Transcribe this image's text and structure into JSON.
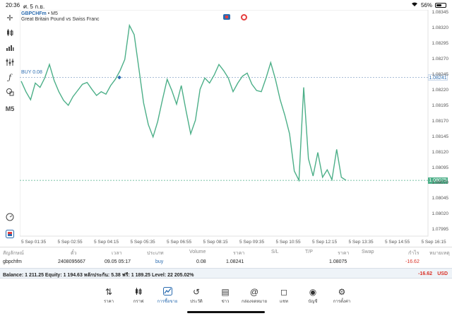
{
  "status": {
    "time": "20:36",
    "date": "ศ. 5 ก.ย.",
    "wifi_icon": "wifi-icon",
    "battery": "56%",
    "battery_level": 0.56
  },
  "chart": {
    "symbol": "GBPCHFm",
    "timeframe_suffix": "• M5",
    "description": "Great Britain Pound vs Swiss Franc",
    "buy_label": "BUY 0.08",
    "buy_price_tag": "1.08241",
    "bid_price_tag": "1.08075",
    "colors": {
      "line": "#4caf88",
      "buy": "#2b6cb0",
      "bid": "#4caf88"
    },
    "ytick_labels": [
      "1.08345",
      "1.08320",
      "1.08295",
      "1.08270",
      "1.08245",
      "1.08220",
      "1.08195",
      "1.08170",
      "1.08145",
      "1.08120",
      "1.08095",
      "1.08070",
      "1.08045",
      "1.08020",
      "1.07995"
    ],
    "xtick_labels": [
      "5 Sep 01:35",
      "5 Sep 02:55",
      "5 Sep 04:15",
      "5 Sep 05:35",
      "5 Sep 06:55",
      "5 Sep 08:15",
      "5 Sep 09:35",
      "5 Sep 10:55",
      "5 Sep 12:15",
      "5 Sep 13:35",
      "5 Sep 14:55",
      "5 Sep 16:15"
    ],
    "timeframe_button": "M5"
  },
  "chart_data": {
    "type": "line",
    "title": "",
    "xlabel": "",
    "ylabel": "",
    "ylim": [
      1.07985,
      1.0835
    ],
    "series": [
      {
        "values": [
          1.08235,
          1.08218,
          1.08205,
          1.08232,
          1.08225,
          1.0824,
          1.08262,
          1.08236,
          1.08218,
          1.08204,
          1.08196,
          1.0821,
          1.0822,
          1.0823,
          1.08233,
          1.08222,
          1.08212,
          1.08218,
          1.08214,
          1.08228,
          1.08238,
          1.08252,
          1.0827,
          1.08325,
          1.0831,
          1.08255,
          1.082,
          1.08165,
          1.08145,
          1.0817,
          1.08205,
          1.08238,
          1.0822,
          1.08198,
          1.08228,
          1.08188,
          1.0815,
          1.08172,
          1.08222,
          1.0824,
          1.08232,
          1.08245,
          1.08262,
          1.08252,
          1.0824,
          1.08218,
          1.08232,
          1.08243,
          1.08248,
          1.0823,
          1.0822,
          1.08218,
          1.0824,
          1.08265,
          1.08238,
          1.08205,
          1.0818,
          1.0815,
          1.0809,
          1.08075,
          1.08225,
          1.0811,
          1.08082,
          1.0812,
          1.0808,
          1.08092,
          1.08076,
          1.08125,
          1.0808,
          1.08075
        ]
      }
    ],
    "buy_level": 1.08241,
    "bid_level": 1.08075
  },
  "left_tools": [
    {
      "name": "crosshair-icon",
      "glyph": "✛"
    },
    {
      "name": "candles-icon",
      "glyph": "╫"
    },
    {
      "name": "bar-chart-icon",
      "glyph": "▁▃▅"
    },
    {
      "name": "indicators-icon",
      "glyph": "⫯"
    },
    {
      "name": "function-icon",
      "glyph": "ƒ"
    },
    {
      "name": "objects-icon",
      "glyph": "⟴"
    }
  ],
  "table": {
    "headers": [
      "สัญลักษณ์",
      "ตั๋ว",
      "เวลา",
      "ประเภท",
      "Volume",
      "ราคา",
      "S/L",
      "T/P",
      "ราคา",
      "Swap",
      "กำไร",
      "หมายเหตุ"
    ],
    "row": {
      "symbol": "gbpchfm",
      "ticket": "2408095667",
      "time": "09.05 05:17",
      "type": "buy",
      "volume": "0.08",
      "price_open": "1.08241",
      "price_current": "1.08075",
      "profit": "-16.62"
    }
  },
  "balance": {
    "text": "Balance: 1 211.25 Equity: 1 194.63 หลักประกัน: 5.38 ฟรี: 1 189.25 Level: 22 205.02%",
    "profit": "-16.62",
    "currency": "USD"
  },
  "nav": [
    {
      "name": "quotes",
      "icon": "⇅",
      "label": "ราคา"
    },
    {
      "name": "charts",
      "icon": "⫼",
      "label": "กราฟ"
    },
    {
      "name": "trade",
      "icon": "📈",
      "label": "การซื้อขาย"
    },
    {
      "name": "history",
      "icon": "↺",
      "label": "ประวัติ"
    },
    {
      "name": "news",
      "icon": "▤",
      "label": "ข่าว"
    },
    {
      "name": "mailbox",
      "icon": "@",
      "label": "กล่องจดหมาย"
    },
    {
      "name": "chat",
      "icon": "◻",
      "label": "แชท"
    },
    {
      "name": "accounts",
      "icon": "◉",
      "label": "บัญชี"
    },
    {
      "name": "settings",
      "icon": "⚙",
      "label": "การตั้งค่า"
    }
  ]
}
